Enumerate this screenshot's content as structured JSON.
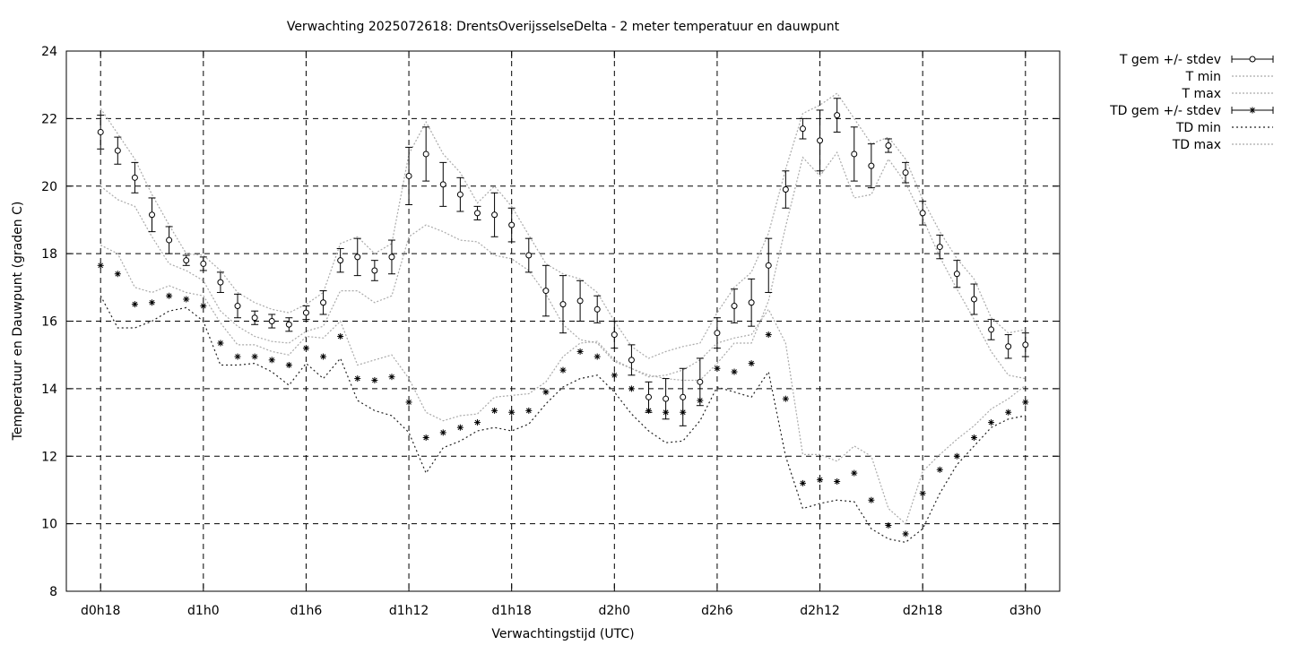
{
  "chart_data": {
    "type": "line",
    "title": "Verwachting 2025072618: DrentsOverijsselseDelta - 2 meter temperatuur en dauwpunt",
    "xlabel": "Verwachtingstijd (UTC)",
    "ylabel": "Temperatuur en Dauwpunt (graden C)",
    "xlim": [
      -2,
      56
    ],
    "ylim": [
      8,
      24
    ],
    "x_ticks": [
      {
        "x": 0,
        "label": "d0h18"
      },
      {
        "x": 6,
        "label": "d1h0"
      },
      {
        "x": 12,
        "label": "d1h6"
      },
      {
        "x": 18,
        "label": "d1h12"
      },
      {
        "x": 24,
        "label": "d1h18"
      },
      {
        "x": 30,
        "label": "d2h0"
      },
      {
        "x": 36,
        "label": "d2h6"
      },
      {
        "x": 42,
        "label": "d2h12"
      },
      {
        "x": 48,
        "label": "d2h18"
      },
      {
        "x": 54,
        "label": "d3h0"
      }
    ],
    "y_ticks": [
      8,
      10,
      12,
      14,
      16,
      18,
      20,
      22,
      24
    ],
    "grid": true,
    "legend_position": "right",
    "series": [
      {
        "name": "T gem +/- stdev",
        "marker": "circle",
        "x": [
          0,
          1,
          2,
          3,
          4,
          5,
          6,
          7,
          8,
          9,
          10,
          11,
          12,
          13,
          14,
          15,
          16,
          17,
          18,
          19,
          20,
          21,
          22,
          23,
          24,
          25,
          26,
          27,
          28,
          29,
          30,
          31,
          32,
          33,
          34,
          35,
          36,
          37,
          38,
          39,
          40,
          41,
          42,
          43,
          44,
          45,
          46,
          47,
          48,
          49,
          50,
          51,
          52,
          53,
          54
        ],
        "mean": [
          21.6,
          21.05,
          20.25,
          19.15,
          18.4,
          17.8,
          17.7,
          17.15,
          16.45,
          16.1,
          16.0,
          15.9,
          16.25,
          16.55,
          17.8,
          17.9,
          17.5,
          17.9,
          20.3,
          20.95,
          20.05,
          19.75,
          19.2,
          19.15,
          18.85,
          17.95,
          16.9,
          16.5,
          16.6,
          16.35,
          15.6,
          14.85,
          13.75,
          13.7,
          13.75,
          14.2,
          15.65,
          16.45,
          16.55,
          17.65,
          19.9,
          21.7,
          21.35,
          22.1,
          20.95,
          20.6,
          21.2,
          20.4,
          19.2,
          18.2,
          17.4,
          16.65,
          15.75,
          15.25,
          15.3
        ],
        "stdev": [
          0.5,
          0.4,
          0.45,
          0.5,
          0.4,
          0.15,
          0.2,
          0.3,
          0.35,
          0.2,
          0.2,
          0.2,
          0.2,
          0.35,
          0.35,
          0.55,
          0.3,
          0.5,
          0.85,
          0.8,
          0.65,
          0.5,
          0.2,
          0.65,
          0.5,
          0.5,
          0.75,
          0.85,
          0.6,
          0.4,
          0.4,
          0.45,
          0.45,
          0.6,
          0.85,
          0.7,
          0.45,
          0.5,
          0.7,
          0.8,
          0.55,
          0.3,
          0.9,
          0.5,
          0.8,
          0.65,
          0.2,
          0.3,
          0.35,
          0.35,
          0.4,
          0.45,
          0.3,
          0.35,
          0.35
        ]
      },
      {
        "name": "T min",
        "style": "dotted",
        "x": [
          0,
          1,
          2,
          3,
          4,
          5,
          6,
          7,
          8,
          9,
          10,
          11,
          12,
          13,
          14,
          15,
          16,
          17,
          18,
          19,
          20,
          21,
          22,
          23,
          24,
          25,
          26,
          27,
          28,
          29,
          30,
          31,
          32,
          33,
          34,
          35,
          36,
          37,
          38,
          39,
          40,
          41,
          42,
          43,
          44,
          45,
          46,
          47,
          48,
          49,
          50,
          51,
          52,
          53,
          54
        ],
        "values": [
          20.0,
          19.6,
          19.4,
          18.5,
          17.7,
          17.5,
          17.2,
          16.3,
          15.85,
          15.55,
          15.4,
          15.35,
          15.7,
          15.85,
          16.9,
          16.9,
          16.55,
          16.75,
          18.5,
          18.85,
          18.65,
          18.4,
          18.35,
          17.95,
          17.85,
          17.5,
          16.8,
          15.9,
          15.45,
          15.35,
          14.8,
          14.6,
          14.4,
          14.3,
          14.25,
          14.25,
          14.75,
          15.35,
          15.35,
          16.6,
          18.8,
          20.85,
          20.3,
          21.0,
          19.65,
          19.75,
          20.8,
          20.1,
          19.05,
          17.9,
          16.95,
          16.05,
          15.1,
          14.4,
          14.3
        ]
      },
      {
        "name": "T max",
        "style": "dotted",
        "x": [
          0,
          1,
          2,
          3,
          4,
          5,
          6,
          7,
          8,
          9,
          10,
          11,
          12,
          13,
          14,
          15,
          16,
          17,
          18,
          19,
          20,
          21,
          22,
          23,
          24,
          25,
          26,
          27,
          28,
          29,
          30,
          31,
          32,
          33,
          34,
          35,
          36,
          37,
          38,
          39,
          40,
          41,
          42,
          43,
          44,
          45,
          46,
          47,
          48,
          49,
          50,
          51,
          52,
          53,
          54
        ],
        "values": [
          22.3,
          21.55,
          20.8,
          19.75,
          18.85,
          18.0,
          17.95,
          17.5,
          16.85,
          16.55,
          16.35,
          16.25,
          16.5,
          16.85,
          18.3,
          18.5,
          18.0,
          18.3,
          20.95,
          21.9,
          20.95,
          20.4,
          19.5,
          20.0,
          19.4,
          18.55,
          17.7,
          17.4,
          17.25,
          16.85,
          16.0,
          15.25,
          14.9,
          15.1,
          15.25,
          15.35,
          16.25,
          17.0,
          17.45,
          18.6,
          20.5,
          22.15,
          22.4,
          22.75,
          22.0,
          21.25,
          21.45,
          20.8,
          19.6,
          18.65,
          17.85,
          17.25,
          16.1,
          15.65,
          15.75
        ]
      },
      {
        "name": "TD gem +/- stdev",
        "marker": "star",
        "x": [
          0,
          1,
          2,
          3,
          4,
          5,
          6,
          7,
          8,
          9,
          10,
          11,
          12,
          13,
          14,
          15,
          16,
          17,
          18,
          19,
          20,
          21,
          22,
          23,
          24,
          25,
          26,
          27,
          28,
          29,
          30,
          31,
          32,
          33,
          34,
          35,
          36,
          37,
          38,
          39,
          40,
          41,
          42,
          43,
          44,
          45,
          46,
          47,
          48,
          49,
          50,
          51,
          52,
          53,
          54
        ],
        "mean": [
          17.65,
          17.4,
          16.5,
          16.55,
          16.75,
          16.65,
          16.45,
          15.35,
          14.95,
          14.95,
          14.85,
          14.7,
          15.2,
          14.95,
          15.55,
          14.3,
          14.25,
          14.35,
          13.6,
          12.55,
          12.7,
          12.85,
          13.0,
          13.35,
          13.3,
          13.35,
          13.9,
          14.55,
          15.1,
          14.95,
          14.4,
          14.0,
          13.35,
          13.3,
          13.3,
          13.65,
          14.6,
          14.5,
          14.75,
          15.6,
          13.7,
          11.2,
          11.3,
          11.25,
          11.5,
          10.7,
          9.95,
          9.7,
          10.9,
          11.6,
          12.0,
          12.55,
          13.0,
          13.3,
          13.6
        ]
      },
      {
        "name": "TD min",
        "style": "dotted",
        "x": [
          0,
          1,
          2,
          3,
          4,
          5,
          6,
          7,
          8,
          9,
          10,
          11,
          12,
          13,
          14,
          15,
          16,
          17,
          18,
          19,
          20,
          21,
          22,
          23,
          24,
          25,
          26,
          27,
          28,
          29,
          30,
          31,
          32,
          33,
          34,
          35,
          36,
          37,
          38,
          39,
          40,
          41,
          42,
          43,
          44,
          45,
          46,
          47,
          48,
          49,
          50,
          51,
          52,
          53,
          54
        ],
        "values": [
          16.75,
          15.8,
          15.8,
          16.0,
          16.3,
          16.4,
          16.0,
          14.7,
          14.7,
          14.75,
          14.5,
          14.1,
          14.75,
          14.3,
          14.9,
          13.65,
          13.35,
          13.2,
          12.7,
          11.5,
          12.25,
          12.45,
          12.75,
          12.85,
          12.75,
          12.95,
          13.55,
          14.05,
          14.3,
          14.4,
          13.9,
          13.25,
          12.75,
          12.4,
          12.45,
          13.05,
          14.05,
          13.9,
          13.75,
          14.5,
          12.0,
          10.45,
          10.6,
          10.7,
          10.65,
          9.85,
          9.55,
          9.45,
          9.85,
          10.9,
          11.75,
          12.3,
          12.85,
          13.1,
          13.2
        ]
      },
      {
        "name": "TD max",
        "style": "dotted",
        "x": [
          0,
          1,
          2,
          3,
          4,
          5,
          6,
          7,
          8,
          9,
          10,
          11,
          12,
          13,
          14,
          15,
          16,
          17,
          18,
          19,
          20,
          21,
          22,
          23,
          24,
          25,
          26,
          27,
          28,
          29,
          30,
          31,
          32,
          33,
          34,
          35,
          36,
          37,
          38,
          39,
          40,
          41,
          42,
          43,
          44,
          45,
          46,
          47,
          48,
          49,
          50,
          51,
          52,
          53,
          54
        ],
        "values": [
          18.25,
          18.0,
          17.0,
          16.85,
          17.05,
          16.85,
          16.75,
          15.95,
          15.3,
          15.3,
          15.1,
          15.0,
          15.55,
          15.5,
          16.0,
          14.7,
          14.85,
          15.0,
          14.3,
          13.3,
          13.05,
          13.2,
          13.25,
          13.75,
          13.8,
          13.85,
          14.2,
          14.95,
          15.35,
          15.4,
          14.85,
          14.6,
          14.35,
          14.4,
          14.55,
          14.85,
          15.35,
          15.5,
          15.6,
          16.35,
          15.35,
          12.05,
          12.05,
          11.85,
          12.3,
          12.0,
          10.45,
          10.0,
          11.55,
          12.05,
          12.5,
          12.9,
          13.4,
          13.7,
          14.1
        ]
      }
    ]
  }
}
